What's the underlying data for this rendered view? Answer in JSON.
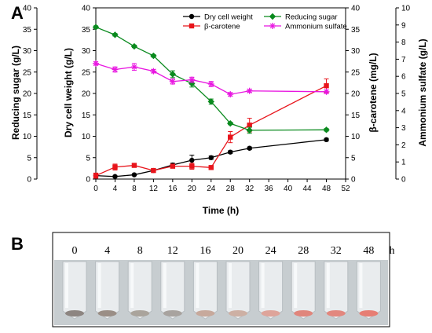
{
  "panel_a_label": "A",
  "panel_b_label": "B",
  "chart_data": {
    "type": "line",
    "xlabel": "Time (h)",
    "x_ticks": [
      "0",
      "4",
      "8",
      "12",
      "16",
      "20",
      "24",
      "28",
      "32",
      "36",
      "40",
      "44",
      "48",
      "52"
    ],
    "xlim": [
      0,
      52
    ],
    "axes": {
      "reducing_sugar": {
        "label": "Reducing sugar (g/L)",
        "ylim": [
          0,
          40
        ],
        "ticks": [
          "0",
          "5",
          "10",
          "15",
          "20",
          "25",
          "30",
          "35",
          "40"
        ]
      },
      "dry_cell_weight": {
        "label": "Dry cell weight (g/L)",
        "ylim": [
          0,
          40
        ],
        "ticks": [
          "0",
          "5",
          "10",
          "15",
          "20",
          "25",
          "30",
          "35",
          "40"
        ]
      },
      "beta_carotene": {
        "label": "β-carotene   (mg/L)",
        "ylim": [
          0,
          40
        ],
        "ticks": [
          "0",
          "5",
          "10",
          "15",
          "20",
          "25",
          "30",
          "35",
          "40"
        ]
      },
      "ammonium_sulfate": {
        "label": "Ammonium sulfate (g/L)",
        "ylim": [
          0,
          10
        ],
        "ticks": [
          "0",
          "1",
          "2",
          "3",
          "4",
          "5",
          "6",
          "7",
          "8",
          "9",
          "10"
        ]
      }
    },
    "series": [
      {
        "name": "Dry cell weight",
        "axis": "dry_cell_weight",
        "color": "#000000",
        "marker": "circle",
        "x": [
          0,
          4,
          8,
          12,
          16,
          20,
          24,
          28,
          32,
          48
        ],
        "y": [
          0.8,
          0.6,
          1.0,
          2.0,
          3.3,
          4.4,
          5.0,
          6.3,
          7.2,
          9.2
        ],
        "err": [
          0.2,
          0.2,
          0.2,
          0.3,
          0.4,
          1.2,
          0.4,
          0.3,
          0.3,
          0.3
        ]
      },
      {
        "name": "β-carotene",
        "axis": "beta_carotene",
        "color": "#e8141b",
        "marker": "square",
        "x": [
          0,
          4,
          8,
          12,
          16,
          20,
          24,
          28,
          32,
          48
        ],
        "y": [
          0.8,
          2.8,
          3.2,
          2.0,
          3.0,
          3.0,
          2.7,
          9.8,
          12.6,
          21.8
        ],
        "err": [
          0.6,
          0.7,
          0.4,
          0.4,
          0.3,
          0.7,
          0.3,
          1.3,
          1.6,
          1.6
        ]
      },
      {
        "name": "Reducing sugar",
        "axis": "reducing_sugar",
        "color": "#0a8a1e",
        "marker": "diamond",
        "x": [
          0,
          4,
          8,
          12,
          16,
          20,
          24,
          28,
          32,
          48
        ],
        "y": [
          35.5,
          33.7,
          31.0,
          28.8,
          24.5,
          22.3,
          18.1,
          13.0,
          11.4,
          11.5
        ],
        "err": [
          0.3,
          0.3,
          0.3,
          0.3,
          0.8,
          0.8,
          0.6,
          0.3,
          0.7,
          0.3
        ]
      },
      {
        "name": "Ammonium sulfate",
        "axis": "ammonium_sulfate",
        "color": "#e815e0",
        "marker": "star",
        "x": [
          0,
          4,
          8,
          12,
          16,
          20,
          24,
          28,
          32,
          48
        ],
        "y": [
          6.75,
          6.4,
          6.55,
          6.3,
          5.7,
          5.8,
          5.55,
          4.95,
          5.15,
          5.1
        ],
        "err": [
          0.1,
          0.15,
          0.2,
          0.1,
          0.15,
          0.15,
          0.15,
          0.1,
          0.08,
          0.1
        ]
      }
    ],
    "legend": {
      "placement": "top-right",
      "columns": 2,
      "order": [
        "Dry cell weight",
        "Reducing sugar",
        "β-carotene",
        "Ammonium sulfate"
      ]
    }
  },
  "photo": {
    "time_labels": [
      "0",
      "4",
      "8",
      "12",
      "16",
      "20",
      "24",
      "28",
      "32",
      "48"
    ],
    "unit": "h",
    "pellet_colors": [
      "#8d8581",
      "#9a8e86",
      "#aaa49c",
      "#a8a39f",
      "#c7a99c",
      "#cdb0a4",
      "#dea49a",
      "#e0867c",
      "#e2877e",
      "#e77e74"
    ]
  }
}
